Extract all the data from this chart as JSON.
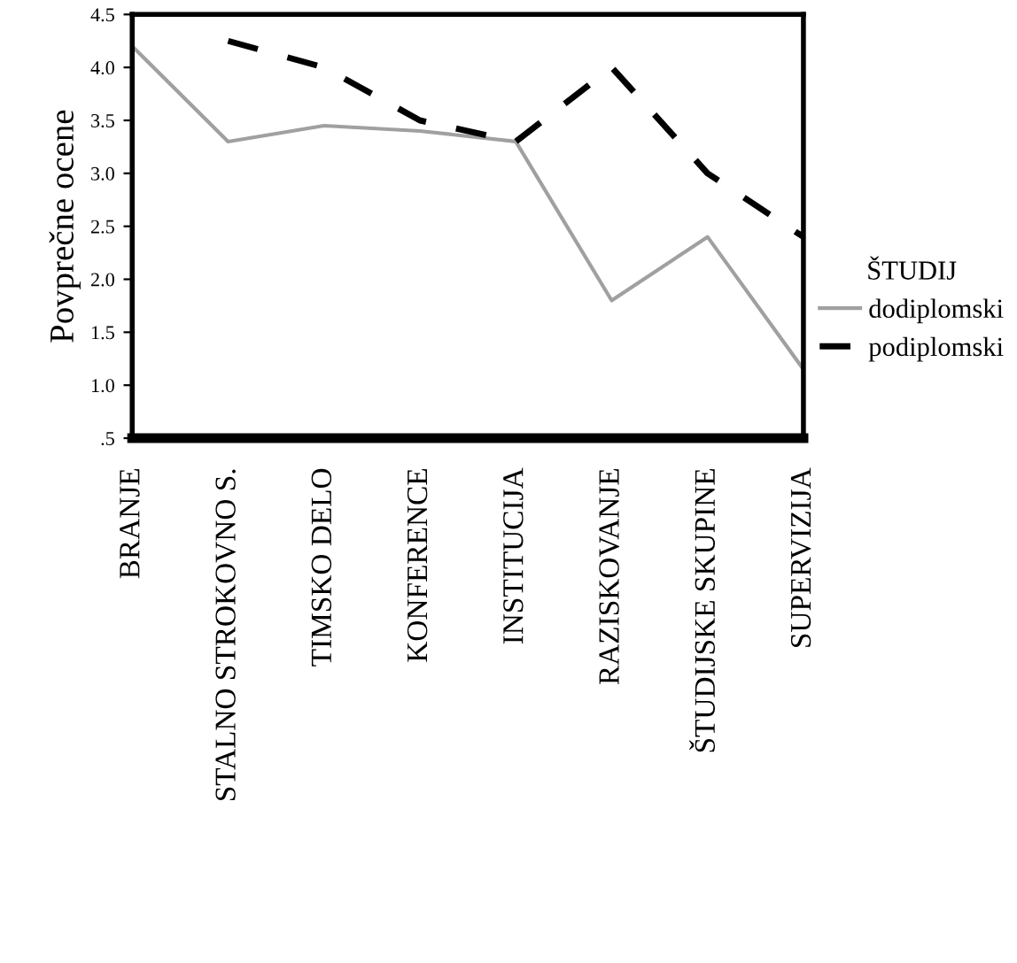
{
  "chart_data": {
    "type": "line",
    "ylabel": "Povprečne ocene",
    "legend_title": "ŠTUDIJ",
    "legend": "right",
    "grid": false,
    "categories": [
      "BRANJE",
      "STALNO STROKOVNO S.",
      "TIMSKO DELO",
      "KONFERENCE",
      "INSTITUCIJA",
      "RAZISKOVANJE",
      "ŠTUDIJSKE SKUPINE",
      "SUPERVIZIJA"
    ],
    "ylim": [
      0.5,
      4.5
    ],
    "yticks": [
      {
        "value": 0.5,
        "label": ".5"
      },
      {
        "value": 1.0,
        "label": "1.0"
      },
      {
        "value": 1.5,
        "label": "1.5"
      },
      {
        "value": 2.0,
        "label": "2.0"
      },
      {
        "value": 2.5,
        "label": "2.5"
      },
      {
        "value": 3.0,
        "label": "3.0"
      },
      {
        "value": 3.5,
        "label": "3.5"
      },
      {
        "value": 4.0,
        "label": "4.0"
      },
      {
        "value": 4.5,
        "label": "4.5"
      }
    ],
    "series": [
      {
        "name": "dodiplomski",
        "color": "#a0a0a0",
        "line_style": "solid",
        "values": [
          4.2,
          3.3,
          3.45,
          3.4,
          3.3,
          1.8,
          2.4,
          1.15
        ]
      },
      {
        "name": "podiplomski",
        "color": "#000000",
        "line_style": "dashed",
        "values": [
          null,
          4.25,
          4.0,
          3.5,
          3.3,
          4.0,
          3.0,
          2.4
        ]
      }
    ]
  }
}
